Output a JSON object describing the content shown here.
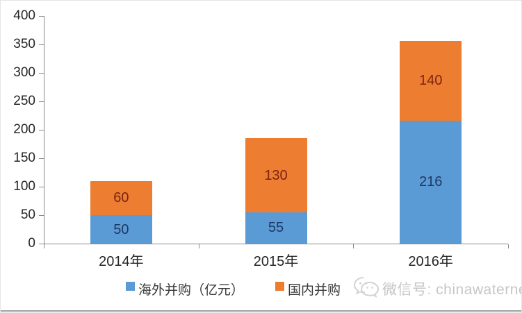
{
  "chart_data": {
    "type": "bar",
    "stacked": true,
    "categories": [
      "2014年",
      "2015年",
      "2016年"
    ],
    "series": [
      {
        "name": "海外并购（亿元）",
        "color": "#5b9bd5",
        "label_color": "#1f3864",
        "values": [
          50,
          55,
          216
        ]
      },
      {
        "name": "国内并购",
        "color": "#ed7d31",
        "label_color": "#7b2413",
        "values": [
          60,
          130,
          140
        ]
      }
    ],
    "title": "",
    "xlabel": "",
    "ylabel": "",
    "ylim": [
      0,
      400
    ],
    "ytick_step": 50,
    "yticks": [
      0,
      50,
      100,
      150,
      200,
      250,
      300,
      350,
      400
    ],
    "grid": false,
    "legend_position": "bottom"
  },
  "legend": {
    "items": [
      {
        "label": "海外并购（亿元）",
        "color": "#5b9bd5"
      },
      {
        "label": "国内并购",
        "color": "#ed7d31"
      }
    ]
  },
  "watermark": {
    "icon": "wechat-icon",
    "text": "微信号: chinawaternet"
  },
  "colors": {
    "axis": "#8a8a8a",
    "tick_text": "#262626",
    "watermark_text": "#c6c6c6",
    "bottom_bar": "#a0a0a0"
  }
}
